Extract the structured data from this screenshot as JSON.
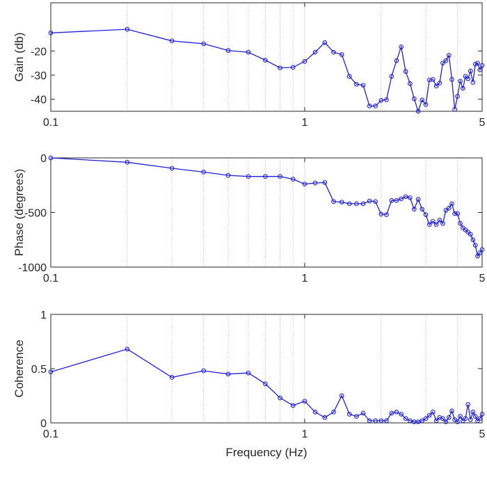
{
  "figure": {
    "xlabel": "Frequency (Hz)"
  },
  "colors": {
    "line": "#1f1fd6",
    "axis": "#262626",
    "grid": "#b8b8b8"
  },
  "chart_data": [
    {
      "type": "line",
      "ylabel": "Gain (db)",
      "xscale": "log",
      "xlim": [
        0.1,
        5
      ],
      "ylim": [
        -45,
        0
      ],
      "xticks": [
        0.1,
        1,
        5
      ],
      "xtick_labels": [
        "0.1",
        "1",
        "5"
      ],
      "yticks": [
        -40,
        -30,
        -20
      ],
      "ytick_labels": [
        "-40",
        "-30",
        "-20"
      ],
      "grid": "x-minor",
      "series": [
        {
          "x": [
            0.1,
            0.2,
            0.3,
            0.4,
            0.5,
            0.6,
            0.7,
            0.8,
            0.9,
            1.0,
            1.1,
            1.2,
            1.3,
            1.4,
            1.5,
            1.6,
            1.7,
            1.8,
            1.9,
            2.0,
            2.1,
            2.2,
            2.3,
            2.4,
            2.5,
            2.6,
            2.7,
            2.8,
            2.9,
            3.0,
            3.1,
            3.2,
            3.3,
            3.4,
            3.5,
            3.6,
            3.7,
            3.8,
            3.9,
            4.0,
            4.1,
            4.2,
            4.3,
            4.4,
            4.5,
            4.6,
            4.7,
            4.8,
            4.9,
            5.0
          ],
          "y": [
            -12.5,
            -11,
            -15.8,
            -17,
            -19.8,
            -20.5,
            -23.8,
            -27,
            -26.8,
            -24.3,
            -20.5,
            -16.5,
            -20.5,
            -21.5,
            -30.5,
            -33.8,
            -34.2,
            -42.8,
            -42.8,
            -40.5,
            -40.2,
            -30.5,
            -24,
            -18.3,
            -28.5,
            -33.5,
            -39.8,
            -45,
            -40.3,
            -42.2,
            -32,
            -31.8,
            -34.5,
            -33.3,
            -25,
            -24,
            -21.8,
            -31.8,
            -44.2,
            -38.8,
            -32.5,
            -35.5,
            -30.5,
            -31.5,
            -28.3,
            -33,
            -25.5,
            -25,
            -27.8,
            -26
          ]
        }
      ]
    },
    {
      "type": "line",
      "ylabel": "Phase (degrees)",
      "xscale": "log",
      "xlim": [
        0.1,
        5
      ],
      "ylim": [
        -1000,
        0
      ],
      "xticks": [
        0.1,
        1,
        5
      ],
      "xtick_labels": [
        "0.1",
        "1",
        "5"
      ],
      "yticks": [
        -1000,
        -500,
        0
      ],
      "ytick_labels": [
        "-1000",
        "-500",
        "0"
      ],
      "grid": "x-minor",
      "series": [
        {
          "x": [
            0.1,
            0.2,
            0.3,
            0.4,
            0.5,
            0.6,
            0.7,
            0.8,
            0.9,
            1.0,
            1.1,
            1.2,
            1.3,
            1.4,
            1.5,
            1.6,
            1.7,
            1.8,
            1.9,
            2.0,
            2.1,
            2.2,
            2.3,
            2.4,
            2.5,
            2.6,
            2.7,
            2.8,
            2.9,
            3.0,
            3.1,
            3.2,
            3.3,
            3.4,
            3.5,
            3.6,
            3.7,
            3.8,
            3.9,
            4.0,
            4.1,
            4.2,
            4.3,
            4.4,
            4.5,
            4.6,
            4.7,
            4.8,
            4.9,
            5.0
          ],
          "y": [
            0,
            -40,
            -95,
            -130,
            -160,
            -170,
            -170,
            -170,
            -195,
            -240,
            -230,
            -225,
            -400,
            -405,
            -420,
            -420,
            -420,
            -395,
            -400,
            -515,
            -520,
            -390,
            -390,
            -375,
            -355,
            -365,
            -470,
            -380,
            -470,
            -520,
            -610,
            -580,
            -610,
            -570,
            -600,
            -480,
            -460,
            -420,
            -510,
            -510,
            -600,
            -640,
            -660,
            -680,
            -700,
            -750,
            -800,
            -900,
            -870,
            -840
          ]
        }
      ]
    },
    {
      "type": "line",
      "ylabel": "Coherence",
      "xscale": "log",
      "xlim": [
        0.1,
        5
      ],
      "ylim": [
        0,
        1
      ],
      "xticks": [
        0.1,
        1,
        5
      ],
      "xtick_labels": [
        "0.1",
        "1",
        "5"
      ],
      "yticks": [
        0,
        0.5,
        1
      ],
      "ytick_labels": [
        "0",
        "0.5",
        "1"
      ],
      "grid": "x-minor",
      "series": [
        {
          "x": [
            0.1,
            0.2,
            0.3,
            0.4,
            0.5,
            0.6,
            0.7,
            0.8,
            0.9,
            1.0,
            1.1,
            1.2,
            1.3,
            1.4,
            1.5,
            1.6,
            1.7,
            1.8,
            1.9,
            2.0,
            2.1,
            2.2,
            2.3,
            2.4,
            2.5,
            2.6,
            2.7,
            2.8,
            2.9,
            3.0,
            3.1,
            3.2,
            3.3,
            3.4,
            3.5,
            3.6,
            3.7,
            3.8,
            3.9,
            4.0,
            4.1,
            4.2,
            4.3,
            4.4,
            4.5,
            4.6,
            4.7,
            4.8,
            4.9,
            5.0
          ],
          "y": [
            0.47,
            0.68,
            0.42,
            0.48,
            0.45,
            0.46,
            0.36,
            0.23,
            0.16,
            0.2,
            0.1,
            0.05,
            0.1,
            0.25,
            0.08,
            0.06,
            0.09,
            0.02,
            0.02,
            0.02,
            0.02,
            0.09,
            0.1,
            0.08,
            0.04,
            0.02,
            0.01,
            0.01,
            0.02,
            0.04,
            0.07,
            0.1,
            0.02,
            0.05,
            0.04,
            0.01,
            0.05,
            0.11,
            0.03,
            0.01,
            0.06,
            0.02,
            0.04,
            0.17,
            0.03,
            0.1,
            0.06,
            0.02,
            0.04,
            0.08
          ]
        }
      ]
    }
  ]
}
